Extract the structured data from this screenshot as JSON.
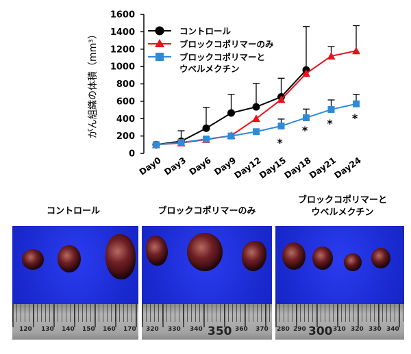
{
  "chart_data": {
    "type": "line",
    "ylabel": "がん組織の体積（mm³）",
    "ylim": [
      0,
      1600
    ],
    "yticks": [
      "0",
      "200",
      "400",
      "600",
      "800",
      "1000",
      "1200",
      "1400",
      "1600"
    ],
    "categories": [
      "Day0",
      "Day3",
      "Day6",
      "Day9",
      "Day12",
      "Day15",
      "Day18",
      "Day21",
      "Day24"
    ],
    "series": [
      {
        "name": "コントロール",
        "color": "#000000",
        "marker": "circle",
        "points": [
          [
            0,
            100
          ],
          [
            1,
            140
          ],
          [
            2,
            290
          ],
          [
            3,
            465
          ],
          [
            4,
            535
          ],
          [
            5,
            650
          ],
          [
            6,
            960
          ]
        ],
        "error": [
          0,
          120,
          240,
          215,
          270,
          215,
          500
        ]
      },
      {
        "name": "ブロックコポリマーのみ",
        "color": "#e8121c",
        "marker": "triangle",
        "points": [
          [
            0,
            100
          ],
          [
            1,
            120
          ],
          [
            2,
            160
          ],
          [
            3,
            205
          ],
          [
            4,
            400
          ],
          [
            5,
            620
          ],
          [
            6,
            920
          ],
          [
            7,
            1120
          ],
          [
            8,
            1180
          ]
        ],
        "error": [
          0,
          0,
          0,
          0,
          0,
          0,
          0,
          110,
          290
        ]
      },
      {
        "name": "ブロックコポリマーとウベルメクチン",
        "color": "#2f8ad8",
        "marker": "square",
        "points": [
          [
            0,
            100
          ],
          [
            1,
            125
          ],
          [
            2,
            165
          ],
          [
            3,
            200
          ],
          [
            4,
            250
          ],
          [
            5,
            315
          ],
          [
            6,
            410
          ],
          [
            7,
            505
          ],
          [
            8,
            570
          ]
        ],
        "error": [
          0,
          0,
          0,
          0,
          0,
          80,
          100,
          110,
          110
        ]
      }
    ],
    "significance": [
      {
        "x": 5,
        "text": "*"
      },
      {
        "x": 6,
        "text": "*"
      },
      {
        "x": 7,
        "text": "*"
      },
      {
        "x": 8,
        "text": "*"
      }
    ],
    "legend": {
      "placement": "top-left",
      "entries": [
        {
          "lines": [
            "コントロール"
          ]
        },
        {
          "lines": [
            "ブロックコポリマーのみ"
          ]
        },
        {
          "lines": [
            "ブロックコポリマーと",
            "ウベルメクチン"
          ]
        }
      ]
    }
  },
  "photos": [
    {
      "caption": [
        "コントロール"
      ],
      "ruler_labels": [
        "120",
        "130",
        "140",
        "150",
        "160",
        "170"
      ]
    },
    {
      "caption": [
        "ブロックコポリマーのみ"
      ],
      "ruler_labels": [
        "320",
        "330",
        "340",
        "350",
        "360",
        "370"
      ]
    },
    {
      "caption": [
        "ブロックコポリマーと",
        "ウベルメクチン"
      ],
      "ruler_labels": [
        "280",
        "290",
        "300",
        "310",
        "320",
        "330",
        "340"
      ]
    }
  ]
}
